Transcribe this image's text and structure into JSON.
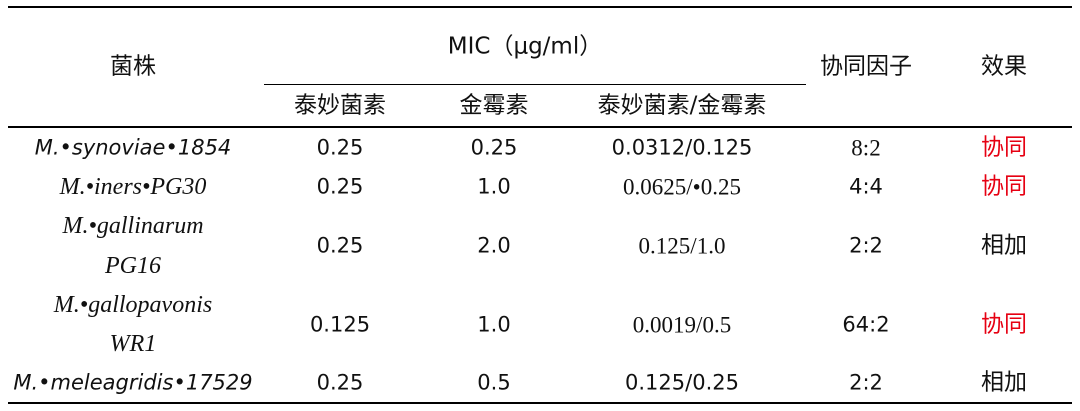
{
  "header": {
    "strain": "菌株",
    "mic": "MIC（μg/ml）",
    "synergy_factor": "协同因子",
    "effect": "效果",
    "tiamulin": "泰妙菌素",
    "aureomycin": "金霉素",
    "combo": "泰妙菌素/金霉素"
  },
  "rows": [
    {
      "strain": "M.•synoviae•1854",
      "tiamulin": "0.25",
      "aureomycin": "0.25",
      "combo": "0.0312/0.125",
      "factor": "8:2",
      "effect": "协同"
    },
    {
      "strain": "M.•iners•PG30",
      "tiamulin": "0.25",
      "aureomycin": "1.0",
      "combo": "0.0625/•0.25",
      "factor": "4:4",
      "effect": "协同"
    },
    {
      "strain_line1": "M.•gallinarum",
      "strain_line2": "PG16",
      "tiamulin": "0.25",
      "aureomycin": "2.0",
      "combo": "0.125/1.0",
      "factor": "2:2",
      "effect": "相加"
    },
    {
      "strain_line1": "M.•gallopavonis",
      "strain_line2": "WR1",
      "tiamulin": "0.125",
      "aureomycin": "1.0",
      "combo": "0.0019/0.5",
      "factor": "64:2",
      "effect": "协同"
    },
    {
      "strain": "M.•meleagridis•17529",
      "tiamulin": "0.25",
      "aureomycin": "0.5",
      "combo": "0.125/0.25",
      "factor": "2:2",
      "effect": "相加"
    }
  ],
  "colors": {
    "synergy": "#e60012",
    "text": "#111111",
    "rule": "#000000"
  }
}
